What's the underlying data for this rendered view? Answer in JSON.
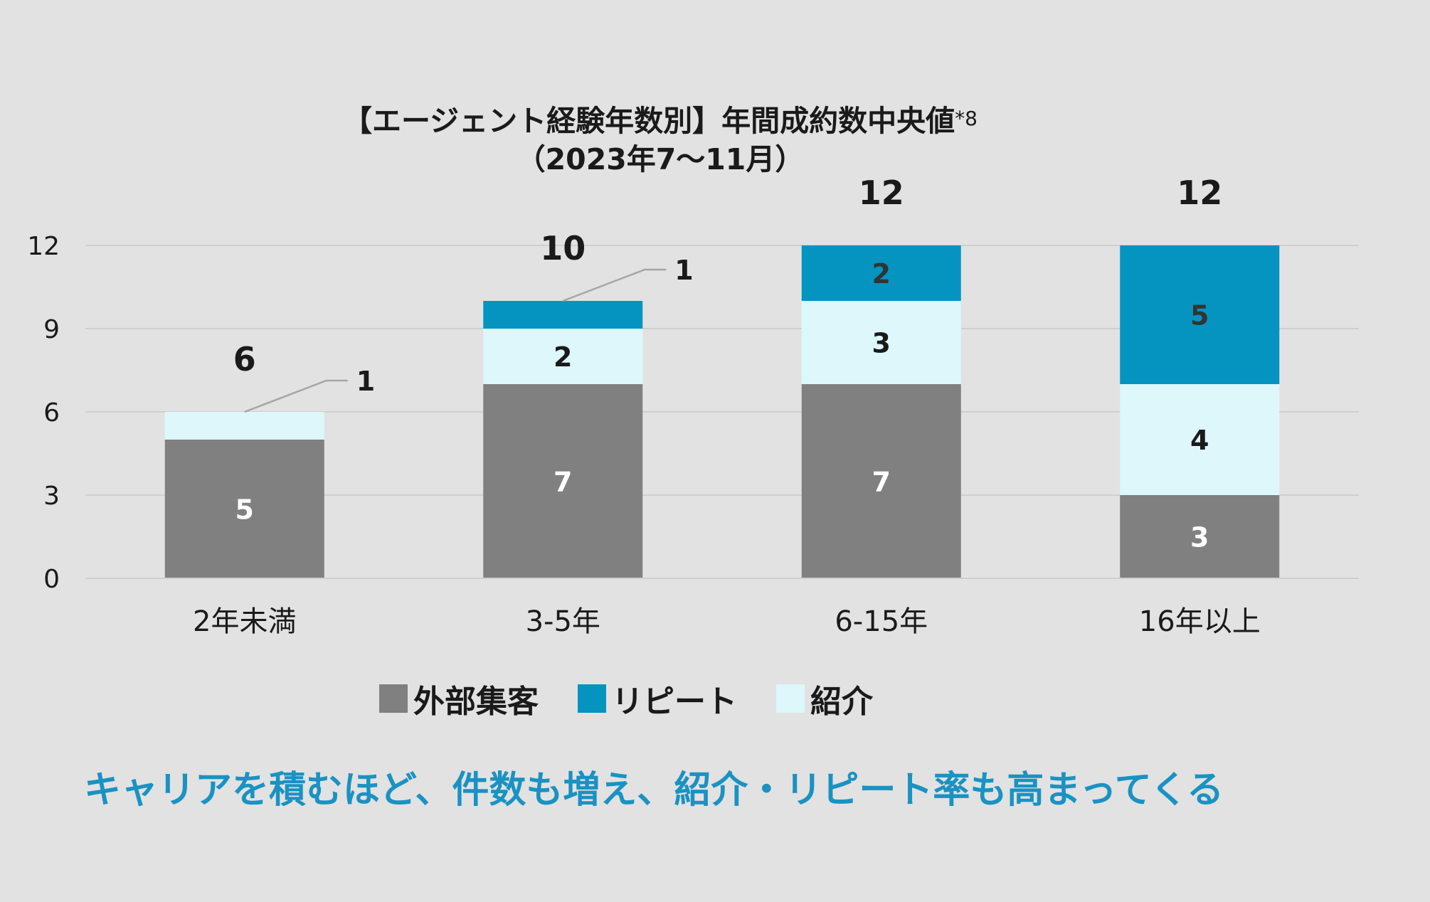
{
  "chart_data": {
    "type": "bar",
    "stacked": true,
    "title": "【エージェント経験年数別】年間成約数中央値",
    "title_note": "*8",
    "subtitle": "（2023年7〜11月）",
    "categories": [
      "2年未満",
      "3-5年",
      "6-15年",
      "16年以上"
    ],
    "series": [
      {
        "name": "外部集客",
        "color": "#808080",
        "values": [
          5,
          7,
          7,
          3
        ]
      },
      {
        "name": "紹介",
        "color": "#ddf7fb",
        "values": [
          1,
          2,
          3,
          4
        ]
      },
      {
        "name": "リピート",
        "color": "#0594c0",
        "values": [
          0,
          1,
          2,
          5
        ]
      }
    ],
    "totals": [
      6,
      10,
      12,
      12
    ],
    "ylim": [
      0,
      12
    ],
    "yticks": [
      0,
      3,
      6,
      9,
      12
    ],
    "grid": true,
    "legend_position": "bottom",
    "legend_order": [
      "外部集客",
      "リピート",
      "紹介"
    ],
    "callouts": [
      {
        "category": "2年未満",
        "series": "紹介",
        "label": "1"
      },
      {
        "category": "3-5年",
        "series": "リピート",
        "label": "1"
      }
    ]
  },
  "caption": "キャリアを積むほど、件数も増え、紹介・リピート率も高まってくる"
}
